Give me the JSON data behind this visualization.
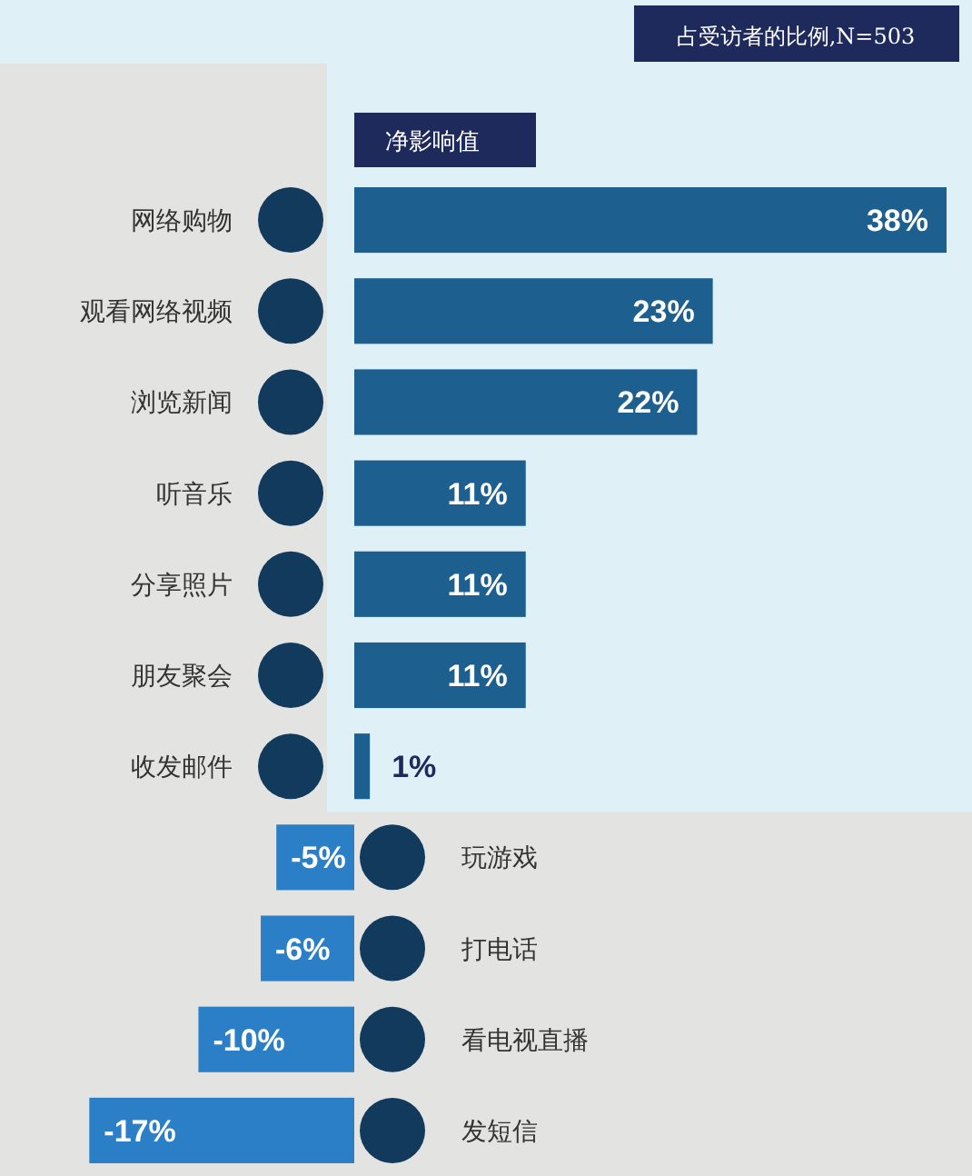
{
  "chart_data": {
    "type": "bar",
    "orientation": "horizontal",
    "title": "占受访者的比例,N=503",
    "subtitle": "净影响值",
    "categories": [
      "网络购物",
      "观看网络视频",
      "浏览新闻",
      "听音乐",
      "分享照片",
      "朋友聚会",
      "收发邮件",
      "玩游戏",
      "打电话",
      "看电视直播",
      "发短信"
    ],
    "values": [
      38,
      23,
      22,
      11,
      11,
      11,
      1,
      -5,
      -6,
      -10,
      -17
    ],
    "colors": [
      "#1d5f8f",
      "#1d5f8f",
      "#1d5f8f",
      "#1d5f8f",
      "#1d5f8f",
      "#1d5f8f",
      "#1d5f8f",
      "#2b7fc6",
      "#2b7fc6",
      "#2b7fc6",
      "#2b7fc6"
    ],
    "value_labels": [
      "38%",
      "23%",
      "22%",
      "11%",
      "11%",
      "11%",
      "1%",
      "-5%",
      "-6%",
      "-10%",
      "-17%"
    ]
  }
}
